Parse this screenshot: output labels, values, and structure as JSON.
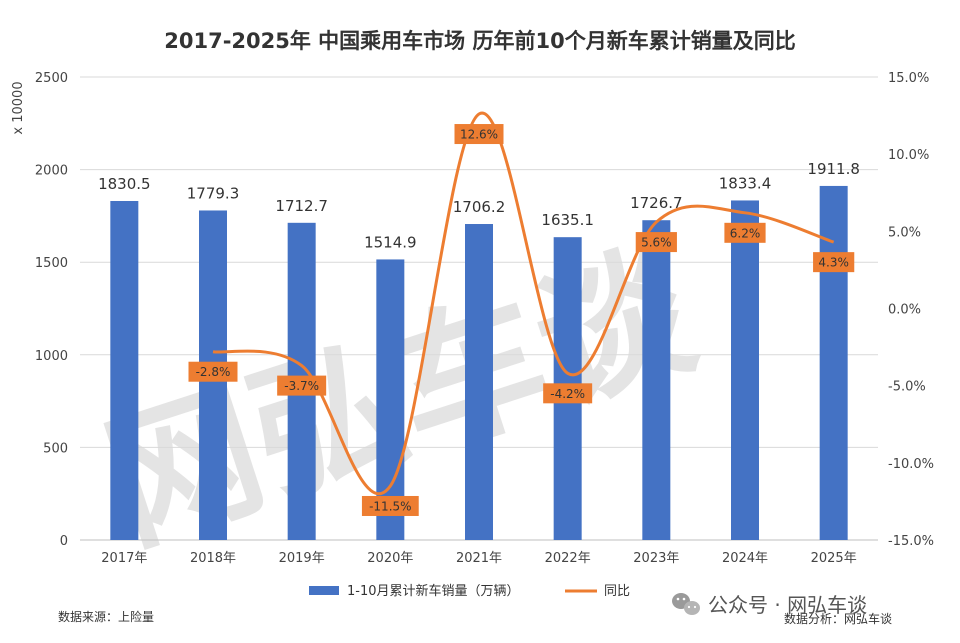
{
  "chart_data": {
    "type": "bar+line",
    "title": "2017-2025年 中国乘用车市场 历年前10个月新车累计销量及同比",
    "y_unit_label": "x 10000",
    "categories": [
      "2017年",
      "2018年",
      "2019年",
      "2020年",
      "2021年",
      "2022年",
      "2023年",
      "2024年",
      "2025年"
    ],
    "bar_series": {
      "name": "1-10月累计新车销量（万辆）",
      "values": [
        1830.5,
        1779.3,
        1712.7,
        1514.9,
        1706.2,
        1635.1,
        1726.7,
        1833.4,
        1911.8
      ],
      "value_labels": [
        "1830.5",
        "1779.3",
        "1712.7",
        "1514.9",
        "1706.2",
        "1635.1",
        "1726.7",
        "1833.4",
        "1911.8"
      ],
      "color": "#4472C4"
    },
    "line_series": {
      "name": "同比",
      "values": [
        null,
        -2.8,
        -3.7,
        -11.5,
        12.6,
        -4.2,
        5.6,
        6.2,
        4.3
      ],
      "value_labels": [
        "",
        "-2.8%",
        "-3.7%",
        "-11.5%",
        "12.6%",
        "-4.2%",
        "5.6%",
        "6.2%",
        "4.3%"
      ],
      "color": "#ED7D31"
    },
    "y_left": {
      "min": 0,
      "max": 2500,
      "ticks": [
        0,
        500,
        1000,
        1500,
        2000,
        2500
      ],
      "tick_labels": [
        "0",
        "500",
        "1000",
        "1500",
        "2000",
        "2500"
      ]
    },
    "y_right": {
      "min": -15,
      "max": 15,
      "ticks": [
        -15,
        -10,
        -5,
        0,
        5,
        10,
        15
      ],
      "tick_labels": [
        "-15.0%",
        "-10.0%",
        "-5.0%",
        "0.0%",
        "5.0%",
        "10.0%",
        "15.0%"
      ]
    },
    "grid": true,
    "legend_position": "bottom"
  },
  "footer": {
    "source": "数据来源：上险量",
    "analysis": "数据分析：网弘车谈",
    "wechat_badge": "公众号 · 网弘车谈"
  },
  "watermark": "网弘车谈",
  "colors": {
    "bar": "#4472C4",
    "line": "#ED7D31",
    "grid": "#d9d9d9"
  },
  "icons": {
    "wechat": "wechat-icon"
  }
}
